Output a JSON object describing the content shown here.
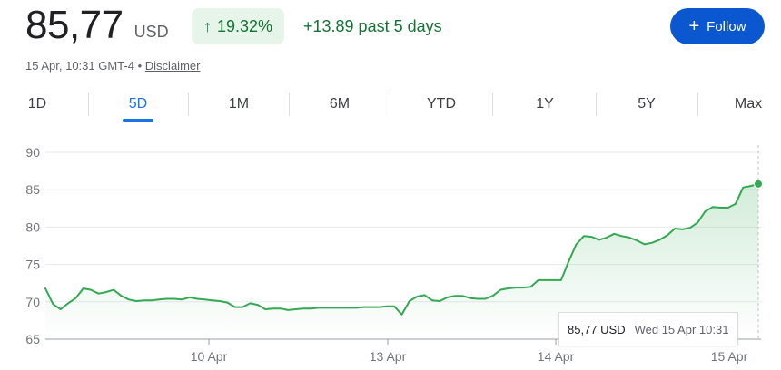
{
  "quote": {
    "price": "85,77",
    "currency": "USD",
    "change_pct": "19.32%",
    "change_abs": "+13.89 past 5 days",
    "timestamp": "15 Apr, 10:31 GMT-4",
    "separator": "•",
    "disclaimer": "Disclaimer",
    "follow_label": "Follow"
  },
  "colors": {
    "up": "#137333",
    "line": "#34a853",
    "accent": "#1a73e8",
    "button": "#0b57d0"
  },
  "tabs": [
    {
      "label": "1D",
      "active": false
    },
    {
      "label": "5D",
      "active": true
    },
    {
      "label": "1M",
      "active": false
    },
    {
      "label": "6M",
      "active": false
    },
    {
      "label": "YTD",
      "active": false
    },
    {
      "label": "1Y",
      "active": false
    },
    {
      "label": "5Y",
      "active": false
    },
    {
      "label": "Max",
      "active": false
    }
  ],
  "tooltip": {
    "value": "85,77 USD",
    "date": "Wed 15 Apr 10:31"
  },
  "chart_data": {
    "type": "area",
    "y_ticks": [
      "90",
      "85",
      "80",
      "75",
      "70",
      "65"
    ],
    "x_ticks": [
      "10 Apr",
      "13 Apr",
      "14 Apr",
      "15 Apr"
    ],
    "ylim": [
      65,
      90
    ],
    "grid": true,
    "series": [
      {
        "values": [
          71.8,
          69.7,
          69.0,
          69.8,
          70.5,
          71.8,
          71.6,
          71.1,
          71.3,
          71.6,
          70.8,
          70.3,
          70.1,
          70.2,
          70.2,
          70.3,
          70.4,
          70.4,
          70.3,
          70.6,
          70.4,
          70.3,
          70.2,
          70.1,
          69.9,
          69.3,
          69.3,
          69.8,
          69.6,
          69.0,
          69.1,
          69.1,
          68.9,
          69.0,
          69.1,
          69.1,
          69.2,
          69.2,
          69.2,
          69.2,
          69.2,
          69.2,
          69.3,
          69.3,
          69.3,
          69.4,
          69.4,
          68.3,
          70.1,
          70.7,
          70.9,
          70.2,
          70.1,
          70.6,
          70.8,
          70.8,
          70.5,
          70.4,
          70.4,
          70.8,
          71.6,
          71.8,
          71.9,
          71.9,
          72.0,
          72.9,
          72.9,
          72.9,
          72.9,
          75.4,
          77.7,
          78.8,
          78.7,
          78.3,
          78.6,
          79.1,
          78.8,
          78.6,
          78.2,
          77.7,
          77.9,
          78.3,
          78.9,
          79.8,
          79.7,
          79.9,
          80.6,
          82.1,
          82.7,
          82.6,
          82.6,
          83.1,
          85.3,
          85.5,
          85.77
        ]
      }
    ]
  }
}
